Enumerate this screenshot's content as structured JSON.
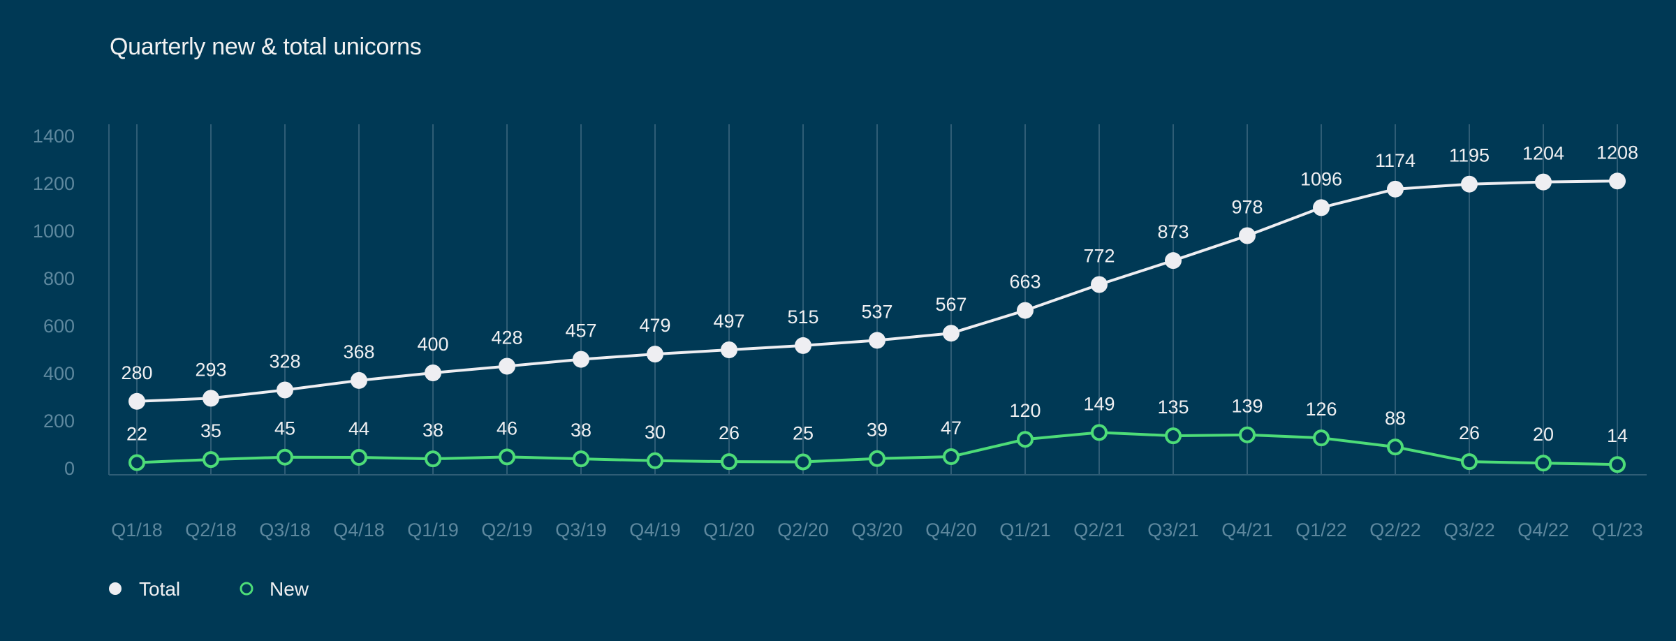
{
  "chart_data": {
    "type": "line",
    "title": "Quarterly new & total unicorns",
    "xlabel": "",
    "ylabel": "",
    "ylim": [
      0,
      1400
    ],
    "yticks": [
      0,
      200,
      400,
      600,
      800,
      1000,
      1200,
      1400
    ],
    "grid": "vertical",
    "legend_position": "bottom-left",
    "categories": [
      "Q1/18",
      "Q2/18",
      "Q3/18",
      "Q4/18",
      "Q1/19",
      "Q2/19",
      "Q3/19",
      "Q4/19",
      "Q1/20",
      "Q2/20",
      "Q3/20",
      "Q4/20",
      "Q1/21",
      "Q2/21",
      "Q3/21",
      "Q4/21",
      "Q1/22",
      "Q2/22",
      "Q3/22",
      "Q4/22",
      "Q1/23"
    ],
    "series": [
      {
        "name": "Total",
        "color": "#eeeef2",
        "marker": "filled-circle",
        "values": [
          280,
          293,
          328,
          368,
          400,
          428,
          457,
          479,
          497,
          515,
          537,
          567,
          663,
          772,
          873,
          978,
          1096,
          1174,
          1195,
          1204,
          1208
        ]
      },
      {
        "name": "New",
        "color": "#4ddc78",
        "marker": "hollow-circle",
        "values": [
          22,
          35,
          45,
          44,
          38,
          46,
          38,
          30,
          26,
          25,
          39,
          47,
          120,
          149,
          135,
          139,
          126,
          88,
          26,
          20,
          14
        ]
      }
    ]
  },
  "colors": {
    "background": "#003955",
    "grid": "#2f5d76",
    "tick_text": "#5e889e"
  }
}
